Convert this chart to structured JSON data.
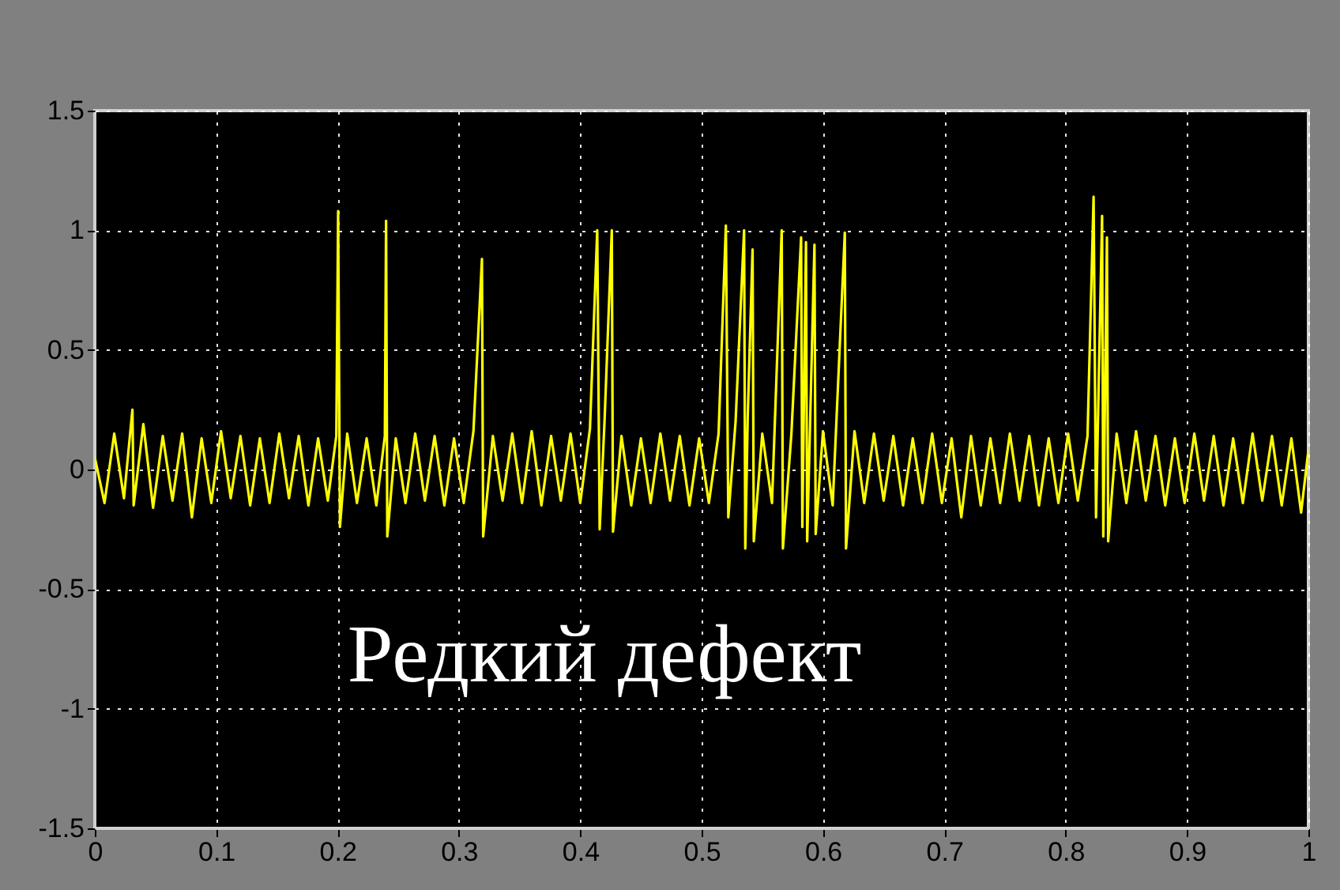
{
  "chart_data": {
    "type": "line",
    "xlim": [
      0,
      1
    ],
    "xticks": [
      0,
      0.1,
      0.2,
      0.3,
      0.4,
      0.5,
      0.6,
      0.7,
      0.8,
      0.9,
      1
    ],
    "ylim": [
      -1.5,
      1.5
    ],
    "yticks": [
      -1.5,
      -1,
      -0.5,
      0,
      0.5,
      1,
      1.5
    ],
    "grid": true,
    "annotations": [
      "Редкий дефект"
    ],
    "series": [
      {
        "color": "#ffff00",
        "x": [
          0,
          0.008,
          0.016,
          0.024,
          0.031,
          0.032,
          0.04,
          0.048,
          0.056,
          0.064,
          0.072,
          0.08,
          0.088,
          0.096,
          0.104,
          0.112,
          0.12,
          0.128,
          0.136,
          0.144,
          0.152,
          0.16,
          0.168,
          0.176,
          0.184,
          0.192,
          0.199,
          0.2005,
          0.202,
          0.208,
          0.216,
          0.224,
          0.232,
          0.239,
          0.24,
          0.241,
          0.248,
          0.256,
          0.264,
          0.272,
          0.28,
          0.288,
          0.296,
          0.304,
          0.312,
          0.319,
          0.32,
          0.328,
          0.336,
          0.344,
          0.352,
          0.36,
          0.368,
          0.376,
          0.384,
          0.392,
          0.4,
          0.408,
          0.414,
          0.416,
          0.42,
          0.426,
          0.427,
          0.434,
          0.442,
          0.45,
          0.458,
          0.466,
          0.474,
          0.482,
          0.49,
          0.498,
          0.506,
          0.514,
          0.52,
          0.522,
          0.528,
          0.535,
          0.536,
          0.538,
          0.542,
          0.543,
          0.55,
          0.558,
          0.566,
          0.567,
          0.574,
          0.582,
          0.583,
          0.586,
          0.587,
          0.593,
          0.594,
          0.6,
          0.608,
          0.618,
          0.619,
          0.626,
          0.634,
          0.642,
          0.65,
          0.658,
          0.666,
          0.674,
          0.682,
          0.69,
          0.698,
          0.706,
          0.714,
          0.722,
          0.73,
          0.738,
          0.746,
          0.754,
          0.762,
          0.77,
          0.778,
          0.786,
          0.794,
          0.802,
          0.81,
          0.818,
          0.823,
          0.825,
          0.83,
          0.831,
          0.834,
          0.835,
          0.842,
          0.85,
          0.858,
          0.866,
          0.874,
          0.882,
          0.89,
          0.898,
          0.906,
          0.914,
          0.922,
          0.93,
          0.938,
          0.946,
          0.954,
          0.962,
          0.97,
          0.978,
          0.986,
          0.994,
          1
        ],
        "values": [
          0.05,
          -0.14,
          0.15,
          -0.12,
          0.25,
          -0.15,
          0.19,
          -0.16,
          0.14,
          -0.13,
          0.15,
          -0.2,
          0.13,
          -0.14,
          0.16,
          -0.12,
          0.14,
          -0.15,
          0.13,
          -0.14,
          0.15,
          -0.12,
          0.14,
          -0.15,
          0.13,
          -0.13,
          0.14,
          1.08,
          -0.24,
          0.15,
          -0.14,
          0.13,
          -0.15,
          0.14,
          1.04,
          -0.28,
          0.13,
          -0.14,
          0.15,
          -0.13,
          0.14,
          -0.15,
          0.13,
          -0.14,
          0.16,
          0.88,
          -0.28,
          0.14,
          -0.13,
          0.15,
          -0.14,
          0.16,
          -0.15,
          0.14,
          -0.13,
          0.15,
          -0.14,
          0.17,
          1,
          -0.25,
          0.2,
          1,
          -0.26,
          0.14,
          -0.15,
          0.13,
          -0.14,
          0.15,
          -0.13,
          0.14,
          -0.15,
          0.13,
          -0.14,
          0.15,
          1.02,
          -0.2,
          0.2,
          1,
          -0.33,
          0.22,
          0.92,
          -0.3,
          0.15,
          -0.14,
          1,
          -0.33,
          0.15,
          0.97,
          -0.24,
          0.95,
          -0.3,
          0.94,
          -0.27,
          0.16,
          -0.15,
          0.99,
          -0.33,
          0.16,
          -0.14,
          0.15,
          -0.13,
          0.14,
          -0.15,
          0.13,
          -0.14,
          0.15,
          -0.14,
          0.13,
          -0.2,
          0.14,
          -0.15,
          0.13,
          -0.14,
          0.15,
          -0.13,
          0.14,
          -0.15,
          0.13,
          -0.14,
          0.15,
          -0.13,
          0.14,
          1.14,
          -0.2,
          1.06,
          -0.28,
          0.97,
          -0.3,
          0.15,
          -0.14,
          0.16,
          -0.13,
          0.14,
          -0.15,
          0.13,
          -0.14,
          0.15,
          -0.13,
          0.14,
          -0.15,
          0.13,
          -0.14,
          0.15,
          -0.13,
          0.14,
          -0.15,
          0.13,
          -0.18,
          0.08
        ]
      }
    ]
  }
}
